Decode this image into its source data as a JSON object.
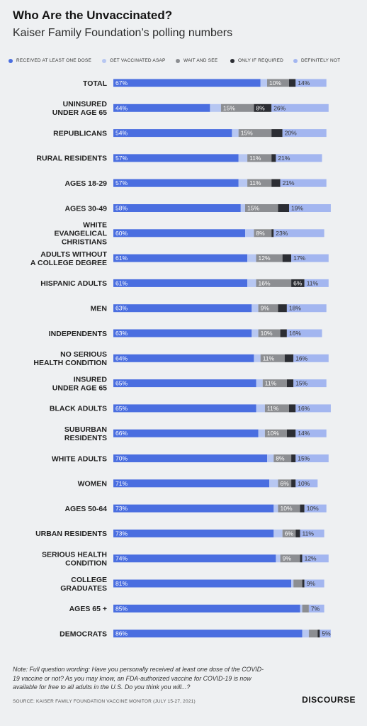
{
  "title": "Who Are the Unvaccinated?",
  "subtitle": "Kaiser Family Foundation’s polling numbers",
  "note": "Note: Full question wording: Have you personally received at least one dose of the COVID-19 vaccine or not? As you may know, an FDA-authorized vaccine for COVID-19 is now available for free to all adults in the U.S. Do you think you will...?",
  "source": "SOURCE: KAISER FAMILY FOUNDATION VACCINE MONITOR (JULY 15-27, 2021)",
  "brand": "DISCOURSE",
  "colors": {
    "received": "#4a6ee0",
    "asap": "#b7c7f2",
    "wait": "#8c8e92",
    "required": "#2b2d33",
    "definitely_not": "#a3b6f0"
  },
  "chart_data": {
    "type": "bar",
    "stacked": true,
    "orientation": "horizontal",
    "legend_position": "top",
    "series": [
      {
        "name": "RECEIVED AT LEAST ONE DOSE",
        "key": "received"
      },
      {
        "name": "GET VACCINATED ASAP",
        "key": "asap"
      },
      {
        "name": "WAIT AND SEE",
        "key": "wait"
      },
      {
        "name": "ONLY IF REQUIRED",
        "key": "required"
      },
      {
        "name": "DEFINITELY NOT",
        "key": "definitely_not"
      }
    ],
    "rows": [
      {
        "label": [
          "TOTAL"
        ],
        "values": [
          67,
          3,
          10,
          3,
          14
        ],
        "labels": [
          "67%",
          "",
          "10%",
          "",
          "14%"
        ]
      },
      {
        "label": [
          "UNINSURED",
          "UNDER AGE 65"
        ],
        "values": [
          44,
          5,
          15,
          8,
          26
        ],
        "labels": [
          "44%",
          "",
          "15%",
          "8%",
          "26%"
        ]
      },
      {
        "label": [
          "REPUBLICANS"
        ],
        "values": [
          54,
          3,
          15,
          5,
          20
        ],
        "labels": [
          "54%",
          "",
          "15%",
          "",
          "20%"
        ]
      },
      {
        "label": [
          "RURAL RESIDENTS"
        ],
        "values": [
          57,
          4,
          11,
          2,
          21
        ],
        "labels": [
          "57%",
          "",
          "11%",
          "",
          "21%"
        ]
      },
      {
        "label": [
          "AGES 18-29"
        ],
        "values": [
          57,
          4,
          11,
          4,
          21
        ],
        "labels": [
          "57%",
          "",
          "11%",
          "",
          "21%"
        ]
      },
      {
        "label": [
          "AGES 30-49"
        ],
        "values": [
          58,
          2,
          15,
          5,
          19
        ],
        "labels": [
          "58%",
          "",
          "15%",
          "",
          "19%"
        ]
      },
      {
        "label": [
          "WHITE",
          "EVANGELICAL",
          "CHRISTIANS"
        ],
        "values": [
          60,
          4,
          8,
          1,
          23
        ],
        "labels": [
          "60%",
          "",
          "8%",
          "",
          "23%"
        ]
      },
      {
        "label": [
          "ADULTS WITHOUT",
          "A COLLEGE DEGREE"
        ],
        "values": [
          61,
          4,
          12,
          4,
          17
        ],
        "labels": [
          "61%",
          "",
          "12%",
          "",
          "17%"
        ]
      },
      {
        "label": [
          "HISPANIC ADULTS"
        ],
        "values": [
          61,
          4,
          16,
          6,
          11
        ],
        "labels": [
          "61%",
          "",
          "16%",
          "6%",
          "11%"
        ]
      },
      {
        "label": [
          "MEN"
        ],
        "values": [
          63,
          3,
          9,
          4,
          18
        ],
        "labels": [
          "63%",
          "",
          "9%",
          "",
          "18%"
        ]
      },
      {
        "label": [
          "INDEPENDENTS"
        ],
        "values": [
          63,
          3,
          10,
          3,
          16
        ],
        "labels": [
          "63%",
          "",
          "10%",
          "",
          "16%"
        ]
      },
      {
        "label": [
          "NO SERIOUS",
          "HEALTH CONDITION"
        ],
        "values": [
          64,
          3,
          11,
          4,
          16
        ],
        "labels": [
          "64%",
          "",
          "11%",
          "",
          "16%"
        ]
      },
      {
        "label": [
          "INSURED",
          "UNDER AGE 65"
        ],
        "values": [
          65,
          3,
          11,
          3,
          15
        ],
        "labels": [
          "65%",
          "",
          "11%",
          "",
          "15%"
        ]
      },
      {
        "label": [
          "BLACK ADULTS"
        ],
        "values": [
          65,
          4,
          11,
          3,
          16
        ],
        "labels": [
          "65%",
          "",
          "11%",
          "",
          "16%"
        ]
      },
      {
        "label": [
          "SUBURBAN",
          "RESIDENTS"
        ],
        "values": [
          66,
          3,
          10,
          4,
          14
        ],
        "labels": [
          "66%",
          "",
          "10%",
          "",
          "14%"
        ]
      },
      {
        "label": [
          "WHITE ADULTS"
        ],
        "values": [
          70,
          3,
          8,
          2,
          15
        ],
        "labels": [
          "70%",
          "",
          "8%",
          "",
          "15%"
        ]
      },
      {
        "label": [
          "WOMEN"
        ],
        "values": [
          71,
          4,
          6,
          2,
          10
        ],
        "labels": [
          "71%",
          "",
          "6%",
          "",
          "10%"
        ]
      },
      {
        "label": [
          "AGES 50-64"
        ],
        "values": [
          73,
          2,
          10,
          2,
          10
        ],
        "labels": [
          "73%",
          "",
          "10%",
          "",
          "10%"
        ]
      },
      {
        "label": [
          "URBAN RESIDENTS"
        ],
        "values": [
          73,
          4,
          6,
          2,
          11
        ],
        "labels": [
          "73%",
          "",
          "6%",
          "",
          "11%"
        ]
      },
      {
        "label": [
          "SERIOUS HEALTH",
          "CONDITION"
        ],
        "values": [
          74,
          2,
          9,
          1,
          12
        ],
        "labels": [
          "74%",
          "",
          "9%",
          "",
          "12%"
        ]
      },
      {
        "label": [
          "COLLEGE",
          "GRADUATES"
        ],
        "values": [
          81,
          1,
          4,
          1,
          9
        ],
        "labels": [
          "81%",
          "",
          "",
          "",
          "9%"
        ]
      },
      {
        "label": [
          "AGES 65 +"
        ],
        "values": [
          85,
          1,
          3,
          0,
          7
        ],
        "labels": [
          "85%",
          "",
          "",
          "",
          "7%"
        ]
      },
      {
        "label": [
          "DEMOCRATS"
        ],
        "values": [
          86,
          3,
          4,
          1,
          5
        ],
        "labels": [
          "86%",
          "",
          "",
          "",
          "5%"
        ]
      }
    ],
    "xlim": [
      0,
      100
    ]
  }
}
